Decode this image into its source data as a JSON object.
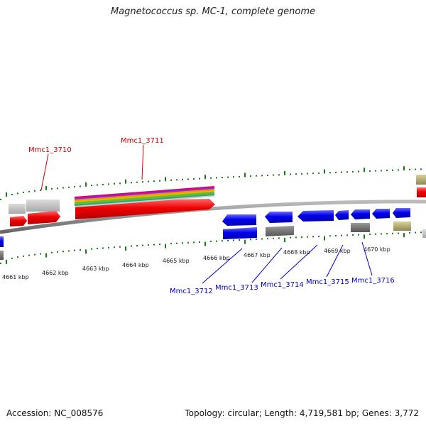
{
  "title": "Magnetococcus sp. MC-1, complete genome",
  "footer": {
    "accession": "Accession: NC_008576",
    "summary": "Topology: circular; Length: 4,719,581 bp; Genes: 3,772"
  },
  "axis_labels": [
    "4661 kbp",
    "4662 kbp",
    "4663 kbp",
    "4664 kbp",
    "4665 kbp",
    "4666 kbp",
    "4667 kbp",
    "4668 kbp",
    "4669 kbp",
    "4670 kbp"
  ],
  "gene_labels": [
    "Mmc1_3710",
    "Mmc1_3711",
    "Mmc1_3712",
    "Mmc1_3713",
    "Mmc1_3714",
    "Mmc1_3715",
    "Mmc1_3716"
  ],
  "colors": {
    "forward_label": "#cc0000",
    "reverse_label": "#0000cc",
    "tick": "#1a7a1a",
    "backbone": "#888888",
    "gene_forward": "#ee0000",
    "gene_reverse": "#0000ee",
    "feature_gray": "#888888",
    "feature_khaki": "#b5ad6a"
  }
}
